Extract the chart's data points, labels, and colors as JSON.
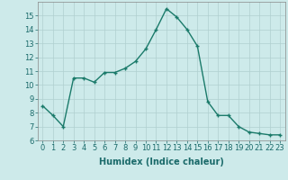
{
  "x": [
    0,
    1,
    2,
    3,
    4,
    5,
    6,
    7,
    8,
    9,
    10,
    11,
    12,
    13,
    14,
    15,
    16,
    17,
    18,
    19,
    20,
    21,
    22,
    23
  ],
  "y": [
    8.5,
    7.8,
    7.0,
    10.5,
    10.5,
    10.2,
    10.9,
    10.9,
    11.2,
    11.7,
    12.6,
    14.0,
    15.5,
    14.9,
    14.0,
    12.8,
    8.8,
    7.8,
    7.8,
    7.0,
    6.6,
    6.5,
    6.4,
    6.4
  ],
  "line_color": "#1a7a6a",
  "marker": "+",
  "marker_size": 3,
  "background_color": "#cdeaea",
  "grid_color": "#b0cfcf",
  "xlabel": "Humidex (Indice chaleur)",
  "xlabel_fontsize": 7,
  "xlim": [
    -0.5,
    23.5
  ],
  "ylim": [
    6,
    16
  ],
  "yticks": [
    6,
    7,
    8,
    9,
    10,
    11,
    12,
    13,
    14,
    15
  ],
  "xticks": [
    0,
    1,
    2,
    3,
    4,
    5,
    6,
    7,
    8,
    9,
    10,
    11,
    12,
    13,
    14,
    15,
    16,
    17,
    18,
    19,
    20,
    21,
    22,
    23
  ],
  "tick_fontsize": 6,
  "line_width": 1.0
}
